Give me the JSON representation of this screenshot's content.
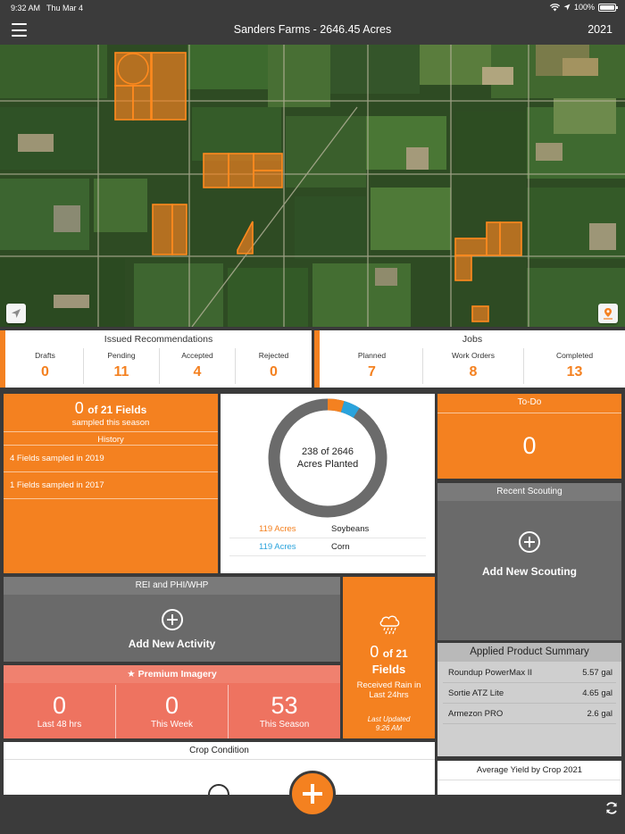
{
  "status": {
    "time": "9:32 AM",
    "date": "Thu Mar 4",
    "battery": "100%"
  },
  "header": {
    "title": "Sanders Farms - 2646.45 Acres",
    "year": "2021"
  },
  "recommendations": {
    "title": "Issued Recommendations",
    "items": [
      {
        "label": "Drafts",
        "value": "0"
      },
      {
        "label": "Pending",
        "value": "11"
      },
      {
        "label": "Accepted",
        "value": "4"
      },
      {
        "label": "Rejected",
        "value": "0"
      }
    ]
  },
  "jobs": {
    "title": "Jobs",
    "items": [
      {
        "label": "Planned",
        "value": "7"
      },
      {
        "label": "Work Orders",
        "value": "8"
      },
      {
        "label": "Completed",
        "value": "13"
      }
    ]
  },
  "sampling": {
    "count": "0",
    "of_label": "of 21 Fields",
    "subtitle": "sampled this season",
    "history_label": "History",
    "history": [
      "4 Fields sampled in 2019",
      "1 Fields sampled in 2017"
    ]
  },
  "planting": {
    "center_line1": "238 of 2646",
    "center_line2": "Acres Planted",
    "legend": [
      {
        "acres": "119 Acres",
        "crop": "Soybeans",
        "color": "#f48120"
      },
      {
        "acres": "119 Acres",
        "crop": "Corn",
        "color": "#2aa3dc"
      }
    ],
    "planted_acres": 238,
    "total_acres": 2646
  },
  "todo": {
    "title": "To-Do",
    "count": "0"
  },
  "scouting": {
    "title": "Recent Scouting",
    "action": "Add New Scouting"
  },
  "rei": {
    "title": "REI and PHI/WHP",
    "action": "Add New Activity"
  },
  "rain": {
    "count": "0",
    "of_label": "of 21",
    "fields_label": "Fields",
    "desc_line1": "Received Rain in",
    "desc_line2": "Last 24hrs",
    "updated_label": "Last Updated",
    "updated_time": "9:26 AM"
  },
  "imagery": {
    "title": "Premium Imagery",
    "items": [
      {
        "value": "0",
        "label": "Last 48 hrs"
      },
      {
        "value": "0",
        "label": "This Week"
      },
      {
        "value": "53",
        "label": "This Season"
      }
    ]
  },
  "applied": {
    "title": "Applied Product Summary",
    "items": [
      {
        "product": "Roundup PowerMax II",
        "amount": "5.57 gal"
      },
      {
        "product": "Sortie ATZ Lite",
        "amount": "4.65 gal"
      },
      {
        "product": "Armezon PRO",
        "amount": "2.6 gal"
      }
    ]
  },
  "crop_condition": {
    "title": "Crop Condition"
  },
  "yield": {
    "title": "Average Yield by Crop 2021"
  },
  "colors": {
    "accent": "#f48120",
    "corn": "#2aa3dc",
    "bar": "#3b3b3b",
    "salmon": "#ee7360"
  }
}
